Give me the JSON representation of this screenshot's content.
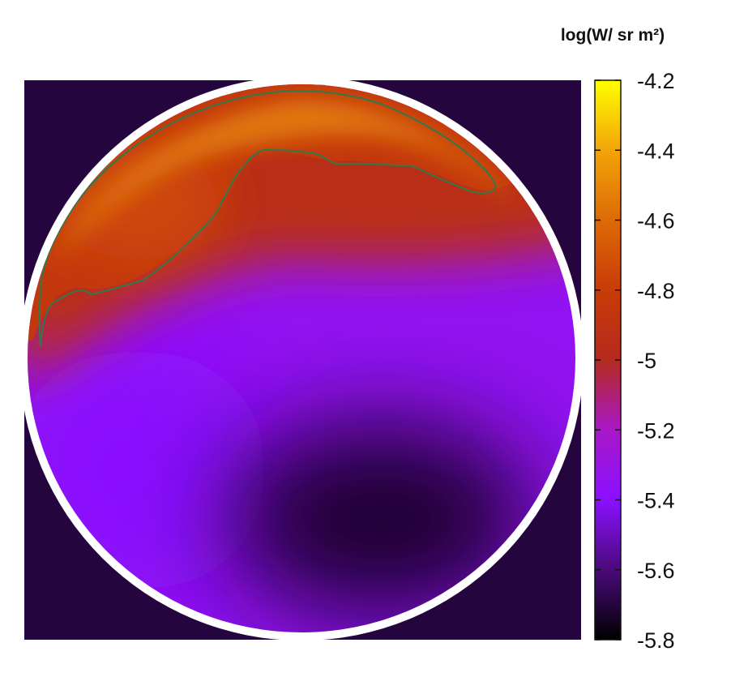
{
  "chart_data": {
    "type": "heatmap",
    "title": "",
    "colorbar_title": "log(W/ sr m²)",
    "colorbar_ticks": [
      "-4.2",
      "-4.4",
      "-4.6",
      "-4.8",
      "-5",
      "-5.2",
      "-5.4",
      "-5.6",
      "-5.8"
    ],
    "value_range": [
      -5.8,
      -4.2
    ],
    "colormap_stops": [
      {
        "value": -5.8,
        "color": "#000000"
      },
      {
        "value": -5.6,
        "color": "#4a0a7a"
      },
      {
        "value": -5.4,
        "color": "#8a10ff"
      },
      {
        "value": -5.2,
        "color": "#a818c8"
      },
      {
        "value": -5.0,
        "color": "#b42a1e"
      },
      {
        "value": -4.8,
        "color": "#c83c08"
      },
      {
        "value": -4.6,
        "color": "#dd6a06"
      },
      {
        "value": -4.4,
        "color": "#f2a408"
      },
      {
        "value": -4.2,
        "color": "#ffff00"
      }
    ],
    "background_value": -5.7,
    "contour_value": -4.9,
    "contour_color": "#2f7a4a",
    "field_regions": [
      {
        "region": "top rim",
        "value": -4.55
      },
      {
        "region": "upper-left",
        "value": -4.75
      },
      {
        "region": "upper band",
        "value": -4.95
      },
      {
        "region": "center",
        "value": -5.35
      },
      {
        "region": "lower-left",
        "value": -5.4
      },
      {
        "region": "lower-right dark",
        "value": -5.72
      }
    ],
    "legend_position": "right"
  }
}
